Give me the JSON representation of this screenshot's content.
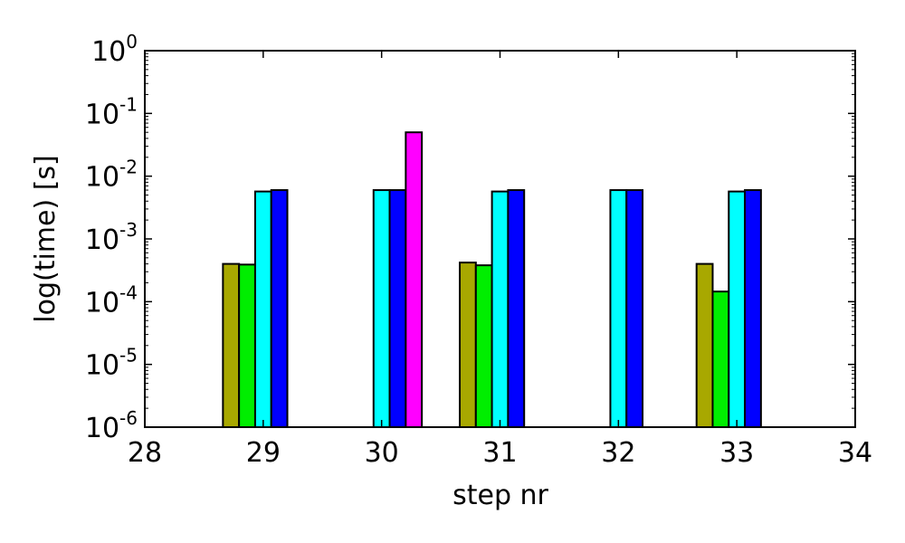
{
  "chart_data": {
    "type": "bar",
    "xlabel": "step nr",
    "ylabel": "log(time) [s]",
    "yscale": "log",
    "xlim": [
      28,
      34
    ],
    "ylim": [
      1e-06,
      1
    ],
    "grid": false,
    "x_ticks": [
      "28",
      "29",
      "30",
      "31",
      "32",
      "33",
      "34"
    ],
    "y_ticks": [
      {
        "base": "10",
        "exp": "0",
        "value": 1
      },
      {
        "base": "10",
        "exp": "-1",
        "value": 0.1
      },
      {
        "base": "10",
        "exp": "-2",
        "value": 0.01
      },
      {
        "base": "10",
        "exp": "-3",
        "value": 0.001
      },
      {
        "base": "10",
        "exp": "-4",
        "value": 0.0001
      },
      {
        "base": "10",
        "exp": "-5",
        "value": 1e-05
      },
      {
        "base": "10",
        "exp": "-6",
        "value": 1e-06
      }
    ],
    "steps": [
      29,
      30,
      31,
      32,
      33
    ],
    "series": [
      {
        "color": "#a8a800",
        "values": [
          0.0004,
          1e-06,
          0.00042,
          1e-06,
          0.0004
        ]
      },
      {
        "color": "#00ee00",
        "values": [
          0.00039,
          1e-06,
          0.00038,
          1e-06,
          0.000145
        ]
      },
      {
        "color": "#00ffff",
        "values": [
          0.0057,
          0.006,
          0.0057,
          0.006,
          0.0057
        ]
      },
      {
        "color": "#0000ff",
        "values": [
          0.006,
          0.006,
          0.006,
          0.006,
          0.006
        ]
      },
      {
        "color": "#ff00ff",
        "values": [
          1e-06,
          0.05,
          1e-06,
          1e-06,
          1e-06
        ]
      }
    ]
  }
}
